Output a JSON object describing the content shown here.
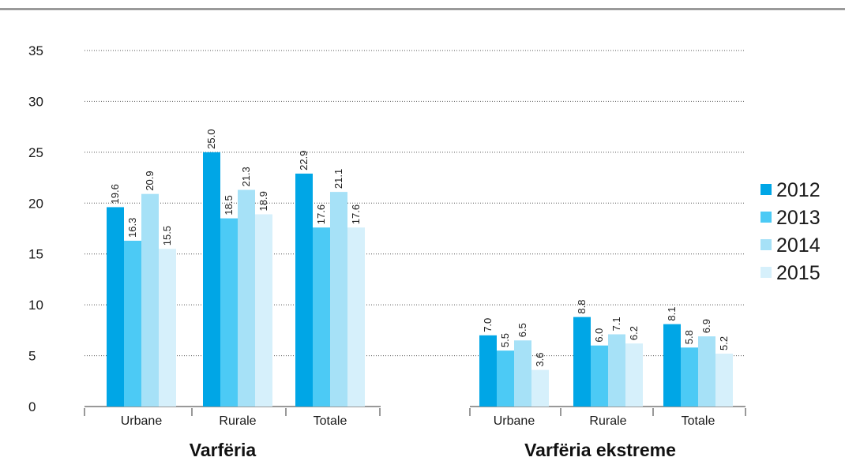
{
  "chart_data": {
    "type": "bar",
    "ylim": [
      0,
      35
    ],
    "yticks": [
      "0",
      "5",
      "10",
      "15",
      "20",
      "25",
      "30",
      "35"
    ],
    "grid": true,
    "legend_position": "right",
    "groups": [
      {
        "title": "Varfëria",
        "categories": [
          "Urbane",
          "Rurale",
          "Totale"
        ],
        "series": [
          {
            "name": "2012",
            "values": [
              19.6,
              25.0,
              22.9
            ],
            "labels": [
              "19.6",
              "25.0",
              "22.9"
            ]
          },
          {
            "name": "2013",
            "values": [
              16.3,
              18.5,
              17.6
            ],
            "labels": [
              "16.3",
              "18.5",
              "17.6"
            ]
          },
          {
            "name": "2014",
            "values": [
              20.9,
              21.3,
              21.1
            ],
            "labels": [
              "20.9",
              "21.3",
              "21.1"
            ]
          },
          {
            "name": "2015",
            "values": [
              15.5,
              18.9,
              17.6
            ],
            "labels": [
              "15.5",
              "18.9",
              "17.6"
            ]
          }
        ]
      },
      {
        "title": "Varfëria ekstreme",
        "categories": [
          "Urbane",
          "Rurale",
          "Totale"
        ],
        "series": [
          {
            "name": "2012",
            "values": [
              7.0,
              8.8,
              8.1
            ],
            "labels": [
              "7.0",
              "8.8",
              "8.1"
            ]
          },
          {
            "name": "2013",
            "values": [
              5.5,
              6.0,
              5.8
            ],
            "labels": [
              "5.5",
              "6.0",
              "5.8"
            ]
          },
          {
            "name": "2014",
            "values": [
              6.5,
              7.1,
              6.9
            ],
            "labels": [
              "6.5",
              "7.1",
              "6.9"
            ]
          },
          {
            "name": "2015",
            "values": [
              3.6,
              6.2,
              5.2
            ],
            "labels": [
              "3.6",
              "6.2",
              "5.2"
            ]
          }
        ]
      }
    ],
    "legend": [
      "2012",
      "2013",
      "2014",
      "2015"
    ],
    "colors": [
      "#00a6e6",
      "#4ccaf5",
      "#a6e1f7",
      "#d6f0fb"
    ]
  }
}
